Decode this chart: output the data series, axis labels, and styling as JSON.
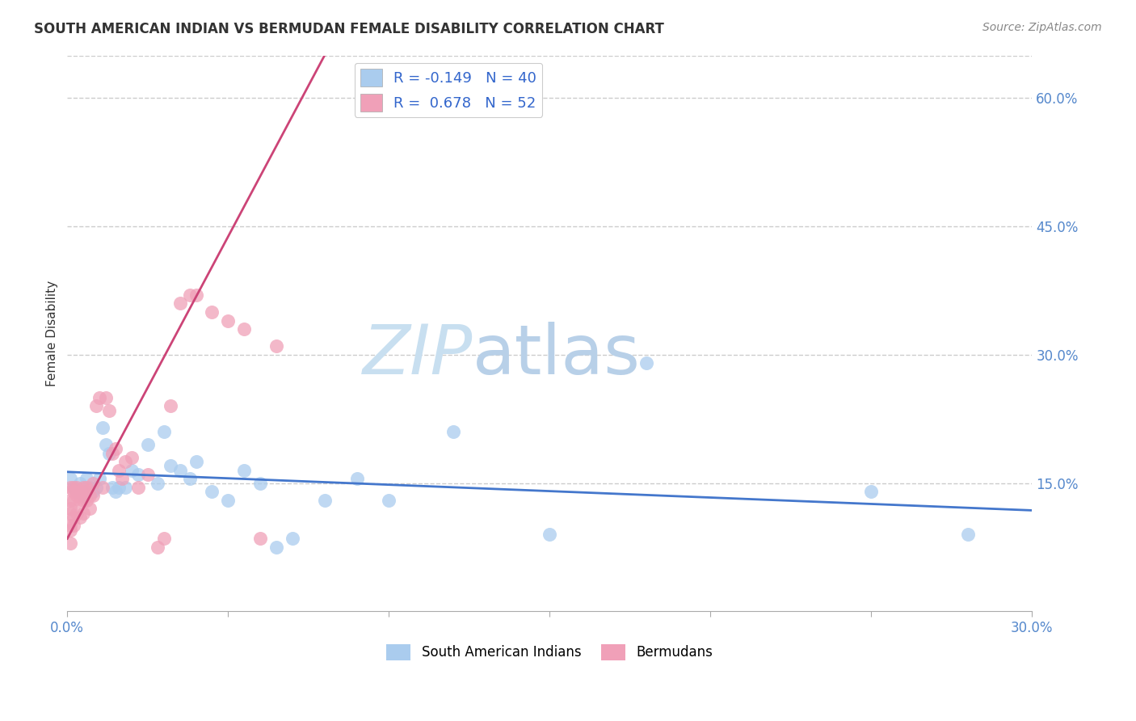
{
  "title": "SOUTH AMERICAN INDIAN VS BERMUDAN FEMALE DISABILITY CORRELATION CHART",
  "source": "Source: ZipAtlas.com",
  "ylabel": "Female Disability",
  "xlim": [
    0.0,
    0.3
  ],
  "ylim": [
    0.0,
    0.65
  ],
  "yticks_right": [
    0.15,
    0.3,
    0.45,
    0.6
  ],
  "ytick_right_labels": [
    "15.0%",
    "30.0%",
    "45.0%",
    "60.0%"
  ],
  "grid_color": "#cccccc",
  "background_color": "#ffffff",
  "blue_color": "#aaccee",
  "pink_color": "#f0a0b8",
  "blue_line_color": "#4477cc",
  "pink_line_color": "#cc4477",
  "watermark_zip": "ZIP",
  "watermark_atlas": "atlas",
  "watermark_color_zip": "#c8dff0",
  "watermark_color_atlas": "#b8d0e8",
  "legend_R_blue": "-0.149",
  "legend_N_blue": "40",
  "legend_R_pink": "0.678",
  "legend_N_pink": "52",
  "legend_label_blue": "South American Indians",
  "legend_label_pink": "Bermudans",
  "blue_x": [
    0.001,
    0.002,
    0.003,
    0.004,
    0.005,
    0.006,
    0.007,
    0.008,
    0.009,
    0.01,
    0.011,
    0.012,
    0.013,
    0.014,
    0.015,
    0.016,
    0.018,
    0.02,
    0.022,
    0.025,
    0.028,
    0.03,
    0.032,
    0.035,
    0.038,
    0.04,
    0.045,
    0.05,
    0.055,
    0.06,
    0.065,
    0.07,
    0.08,
    0.09,
    0.1,
    0.12,
    0.15,
    0.18,
    0.25,
    0.28
  ],
  "blue_y": [
    0.155,
    0.145,
    0.14,
    0.15,
    0.135,
    0.155,
    0.145,
    0.14,
    0.145,
    0.155,
    0.215,
    0.195,
    0.185,
    0.145,
    0.14,
    0.145,
    0.145,
    0.165,
    0.16,
    0.195,
    0.15,
    0.21,
    0.17,
    0.165,
    0.155,
    0.175,
    0.14,
    0.13,
    0.165,
    0.15,
    0.075,
    0.085,
    0.13,
    0.155,
    0.13,
    0.21,
    0.09,
    0.29,
    0.14,
    0.09
  ],
  "pink_x": [
    0.001,
    0.001,
    0.001,
    0.001,
    0.001,
    0.001,
    0.001,
    0.002,
    0.002,
    0.002,
    0.002,
    0.002,
    0.003,
    0.003,
    0.003,
    0.004,
    0.004,
    0.004,
    0.005,
    0.005,
    0.005,
    0.006,
    0.006,
    0.006,
    0.007,
    0.007,
    0.008,
    0.008,
    0.009,
    0.01,
    0.011,
    0.012,
    0.013,
    0.014,
    0.015,
    0.016,
    0.017,
    0.018,
    0.02,
    0.022,
    0.025,
    0.028,
    0.03,
    0.032,
    0.035,
    0.038,
    0.04,
    0.045,
    0.05,
    0.055,
    0.06,
    0.065
  ],
  "pink_y": [
    0.145,
    0.13,
    0.12,
    0.115,
    0.1,
    0.095,
    0.08,
    0.145,
    0.14,
    0.13,
    0.11,
    0.1,
    0.145,
    0.135,
    0.115,
    0.14,
    0.13,
    0.11,
    0.145,
    0.13,
    0.115,
    0.145,
    0.14,
    0.13,
    0.135,
    0.12,
    0.15,
    0.135,
    0.24,
    0.25,
    0.145,
    0.25,
    0.235,
    0.185,
    0.19,
    0.165,
    0.155,
    0.175,
    0.18,
    0.145,
    0.16,
    0.075,
    0.085,
    0.24,
    0.36,
    0.37,
    0.37,
    0.35,
    0.34,
    0.33,
    0.085,
    0.31
  ]
}
